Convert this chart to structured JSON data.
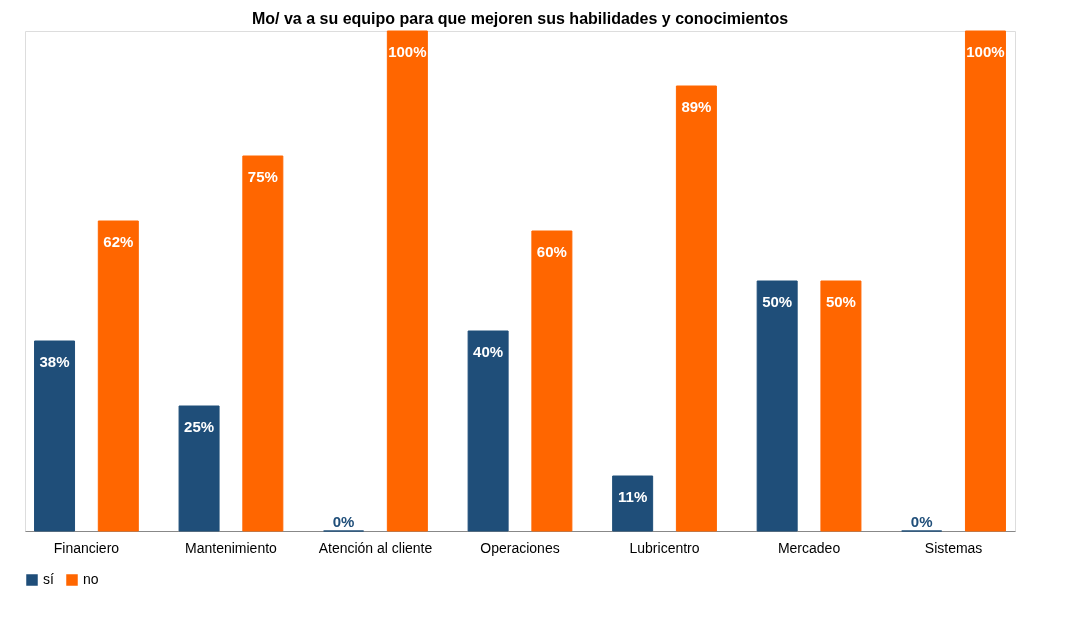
{
  "chart_data": {
    "type": "bar",
    "title": "Mo/ va a su equipo para que mejoren sus habilidades y conocimientos",
    "categories": [
      "Financiero",
      "Mantenimiento",
      "Atención al cliente",
      "Operaciones",
      "Lubricentro",
      "Mercadeo",
      "Sistemas"
    ],
    "series": [
      {
        "name": "sí",
        "color": "#1f4e79",
        "values": [
          38,
          25,
          0,
          40,
          11,
          50,
          0
        ],
        "value_labels": [
          "38%",
          "25%",
          "0%",
          "40%",
          "11%",
          "50%",
          "0%"
        ]
      },
      {
        "name": "no",
        "color": "#ff6600",
        "values": [
          62,
          75,
          100,
          60,
          89,
          50,
          100
        ],
        "value_labels": [
          "62%",
          "75%",
          "100%",
          "60%",
          "89%",
          "50%",
          "100%"
        ]
      }
    ],
    "ylim": [
      0,
      100
    ],
    "tick_labels": "x",
    "grid": false,
    "legend": "bottom"
  }
}
